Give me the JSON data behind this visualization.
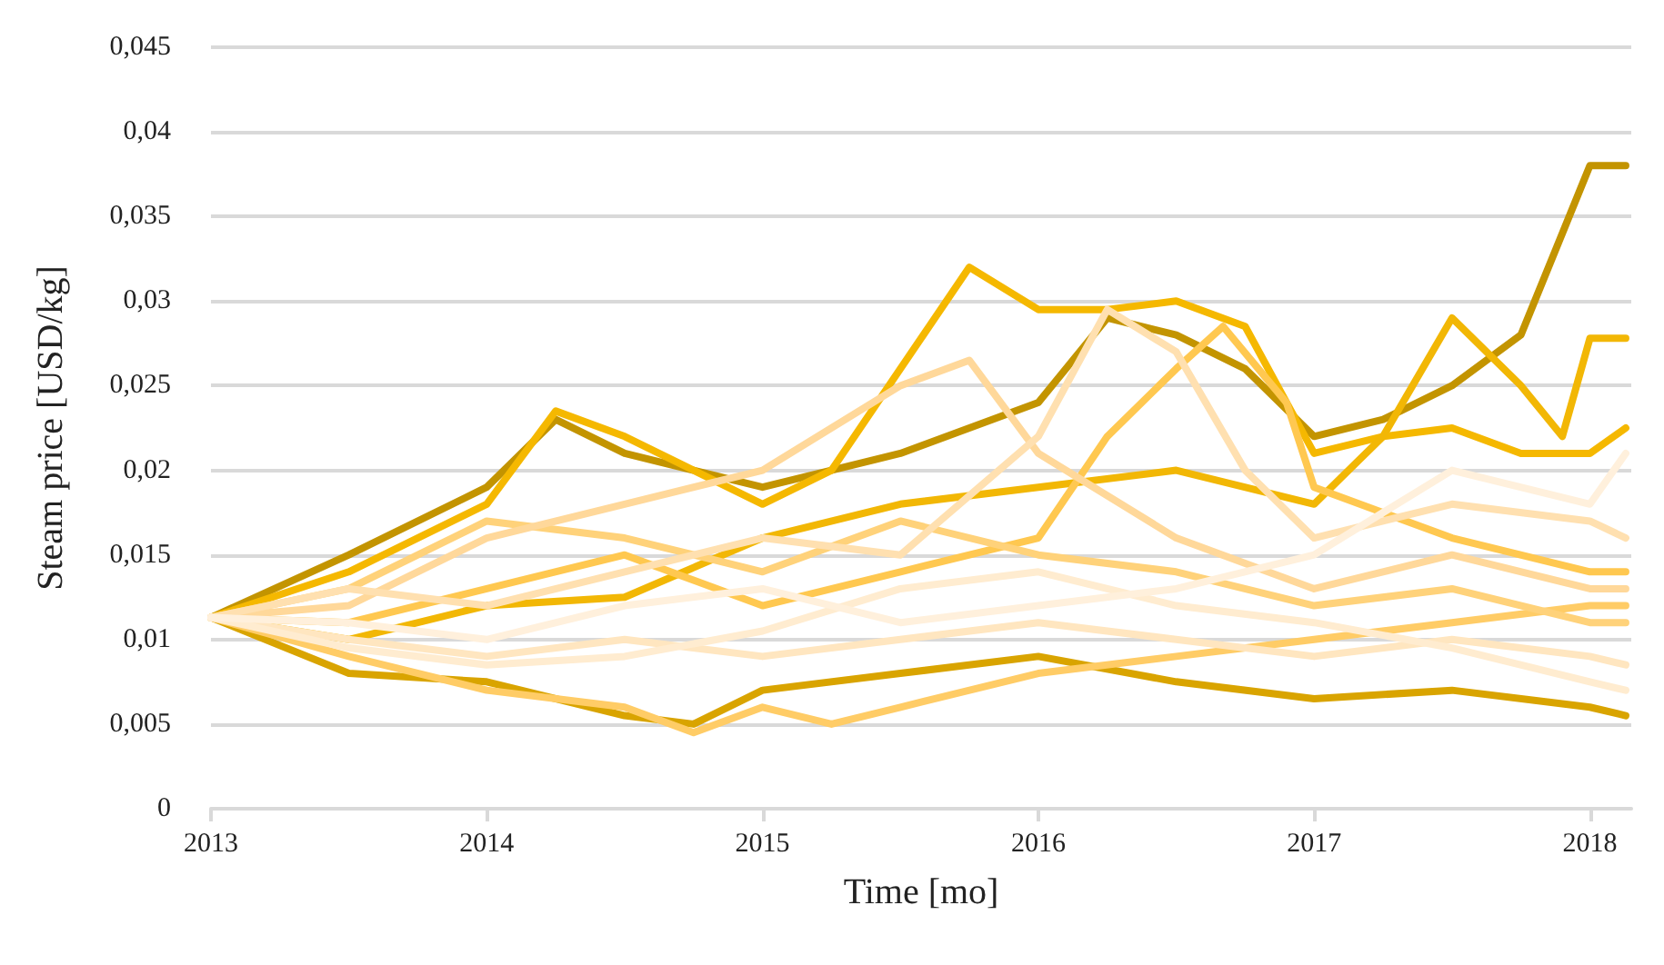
{
  "chart_data": {
    "type": "line",
    "xlabel": "Time [mo]",
    "ylabel": "Steam price [USD/kg]",
    "xlim": [
      2013,
      2018.15
    ],
    "ylim": [
      0,
      0.045
    ],
    "xticks": [
      2013,
      2014,
      2015,
      2016,
      2017,
      2018
    ],
    "yticks": [
      0,
      {
        "value": 0.005,
        "label": "0,005"
      },
      {
        "value": 0.01,
        "label": "0,01"
      },
      {
        "value": 0.015,
        "label": "0,015"
      },
      {
        "value": 0.02,
        "label": "0,02"
      },
      {
        "value": 0.025,
        "label": "0,025"
      },
      {
        "value": 0.03,
        "label": "0,03"
      },
      {
        "value": 0.035,
        "label": "0,035"
      },
      {
        "value": 0.04,
        "label": "0,04"
      },
      {
        "value": 0.045,
        "label": "0,045"
      }
    ],
    "grid": "y",
    "marker": "none",
    "line_style": "solid",
    "series": [
      {
        "color": "#c39400",
        "x": [
          2013,
          2013.5,
          2014,
          2014.25,
          2014.5,
          2014.75,
          2015,
          2015.5,
          2016,
          2016.25,
          2016.5,
          2016.75,
          2017,
          2017.25,
          2017.5,
          2017.75,
          2018,
          2018.13
        ],
        "values": [
          0.0113,
          0.015,
          0.019,
          0.023,
          0.021,
          0.02,
          0.019,
          0.021,
          0.024,
          0.029,
          0.028,
          0.026,
          0.022,
          0.023,
          0.025,
          0.028,
          0.038,
          0.038
        ]
      },
      {
        "color": "#d9a400",
        "x": [
          2013,
          2013.5,
          2014,
          2014.5,
          2014.75,
          2015,
          2015.5,
          2016,
          2016.5,
          2017,
          2017.5,
          2018,
          2018.13
        ],
        "values": [
          0.0113,
          0.008,
          0.0075,
          0.0055,
          0.005,
          0.007,
          0.008,
          0.009,
          0.0075,
          0.0065,
          0.007,
          0.006,
          0.0055
        ]
      },
      {
        "color": "#f5b800",
        "x": [
          2013,
          2013.5,
          2014,
          2014.25,
          2014.5,
          2015,
          2015.25,
          2015.5,
          2015.75,
          2016,
          2016.25,
          2016.5,
          2016.75,
          2017,
          2017.25,
          2017.5,
          2017.75,
          2018,
          2018.13
        ],
        "values": [
          0.0113,
          0.014,
          0.018,
          0.0235,
          0.022,
          0.018,
          0.02,
          0.026,
          0.032,
          0.0295,
          0.0295,
          0.03,
          0.0285,
          0.021,
          0.022,
          0.0225,
          0.021,
          0.021,
          0.0225
        ]
      },
      {
        "color": "#f2b705",
        "x": [
          2013,
          2013.5,
          2014,
          2014.5,
          2015,
          2015.5,
          2016,
          2016.5,
          2017,
          2017.25,
          2017.5,
          2017.75,
          2017.9,
          2018,
          2018.13
        ],
        "values": [
          0.0113,
          0.01,
          0.012,
          0.0125,
          0.016,
          0.018,
          0.019,
          0.02,
          0.018,
          0.022,
          0.029,
          0.025,
          0.022,
          0.0278,
          0.0278
        ]
      },
      {
        "color": "#ffc850",
        "x": [
          2013,
          2013.5,
          2014,
          2014.5,
          2015,
          2015.5,
          2016,
          2016.25,
          2016.5,
          2016.67,
          2016.9,
          2017,
          2017.5,
          2018,
          2018.13
        ],
        "values": [
          0.0113,
          0.011,
          0.013,
          0.015,
          0.012,
          0.014,
          0.016,
          0.022,
          0.026,
          0.0285,
          0.024,
          0.019,
          0.016,
          0.014,
          0.014
        ]
      },
      {
        "color": "#ffcc66",
        "x": [
          2013,
          2013.5,
          2014,
          2014.5,
          2014.75,
          2015,
          2015.25,
          2015.5,
          2016,
          2016.5,
          2017,
          2017.5,
          2018,
          2018.13
        ],
        "values": [
          0.0113,
          0.009,
          0.007,
          0.006,
          0.0045,
          0.006,
          0.005,
          0.006,
          0.008,
          0.009,
          0.01,
          0.011,
          0.012,
          0.012
        ]
      },
      {
        "color": "#ffd27a",
        "x": [
          2013,
          2013.5,
          2014,
          2014.5,
          2015,
          2015.5,
          2016,
          2016.5,
          2017,
          2017.5,
          2018,
          2018.13
        ],
        "values": [
          0.0113,
          0.013,
          0.017,
          0.016,
          0.014,
          0.017,
          0.015,
          0.014,
          0.012,
          0.013,
          0.011,
          0.011
        ]
      },
      {
        "color": "#ffd89a",
        "x": [
          2013,
          2013.5,
          2014,
          2014.5,
          2015,
          2015.5,
          2015.75,
          2016,
          2016.5,
          2017,
          2017.5,
          2018,
          2018.13
        ],
        "values": [
          0.0113,
          0.012,
          0.016,
          0.018,
          0.02,
          0.025,
          0.0265,
          0.021,
          0.016,
          0.013,
          0.015,
          0.013,
          0.013
        ]
      },
      {
        "color": "#ffe0b0",
        "x": [
          2013,
          2013.5,
          2014,
          2014.5,
          2015,
          2015.5,
          2016,
          2016.25,
          2016.5,
          2016.75,
          2017,
          2017.5,
          2018,
          2018.13
        ],
        "values": [
          0.0113,
          0.013,
          0.012,
          0.014,
          0.016,
          0.015,
          0.022,
          0.0295,
          0.027,
          0.02,
          0.016,
          0.018,
          0.017,
          0.016
        ]
      },
      {
        "color": "#ffe6c0",
        "x": [
          2013,
          2013.5,
          2014,
          2014.5,
          2015,
          2015.5,
          2016,
          2016.5,
          2017,
          2017.5,
          2018,
          2018.13
        ],
        "values": [
          0.0113,
          0.01,
          0.009,
          0.01,
          0.009,
          0.01,
          0.011,
          0.01,
          0.009,
          0.01,
          0.009,
          0.0085
        ]
      },
      {
        "color": "#ffecd0",
        "x": [
          2013,
          2013.5,
          2014,
          2014.5,
          2015,
          2015.5,
          2016,
          2016.5,
          2017,
          2017.5,
          2018,
          2018.13
        ],
        "values": [
          0.0113,
          0.0095,
          0.0085,
          0.009,
          0.0105,
          0.013,
          0.014,
          0.012,
          0.011,
          0.0095,
          0.0075,
          0.007
        ]
      },
      {
        "color": "#fff0dc",
        "x": [
          2013,
          2013.5,
          2014,
          2014.5,
          2015,
          2015.5,
          2016,
          2016.5,
          2017,
          2017.5,
          2018,
          2018.13
        ],
        "values": [
          0.0113,
          0.011,
          0.01,
          0.012,
          0.013,
          0.011,
          0.012,
          0.013,
          0.015,
          0.02,
          0.018,
          0.021
        ]
      }
    ]
  }
}
